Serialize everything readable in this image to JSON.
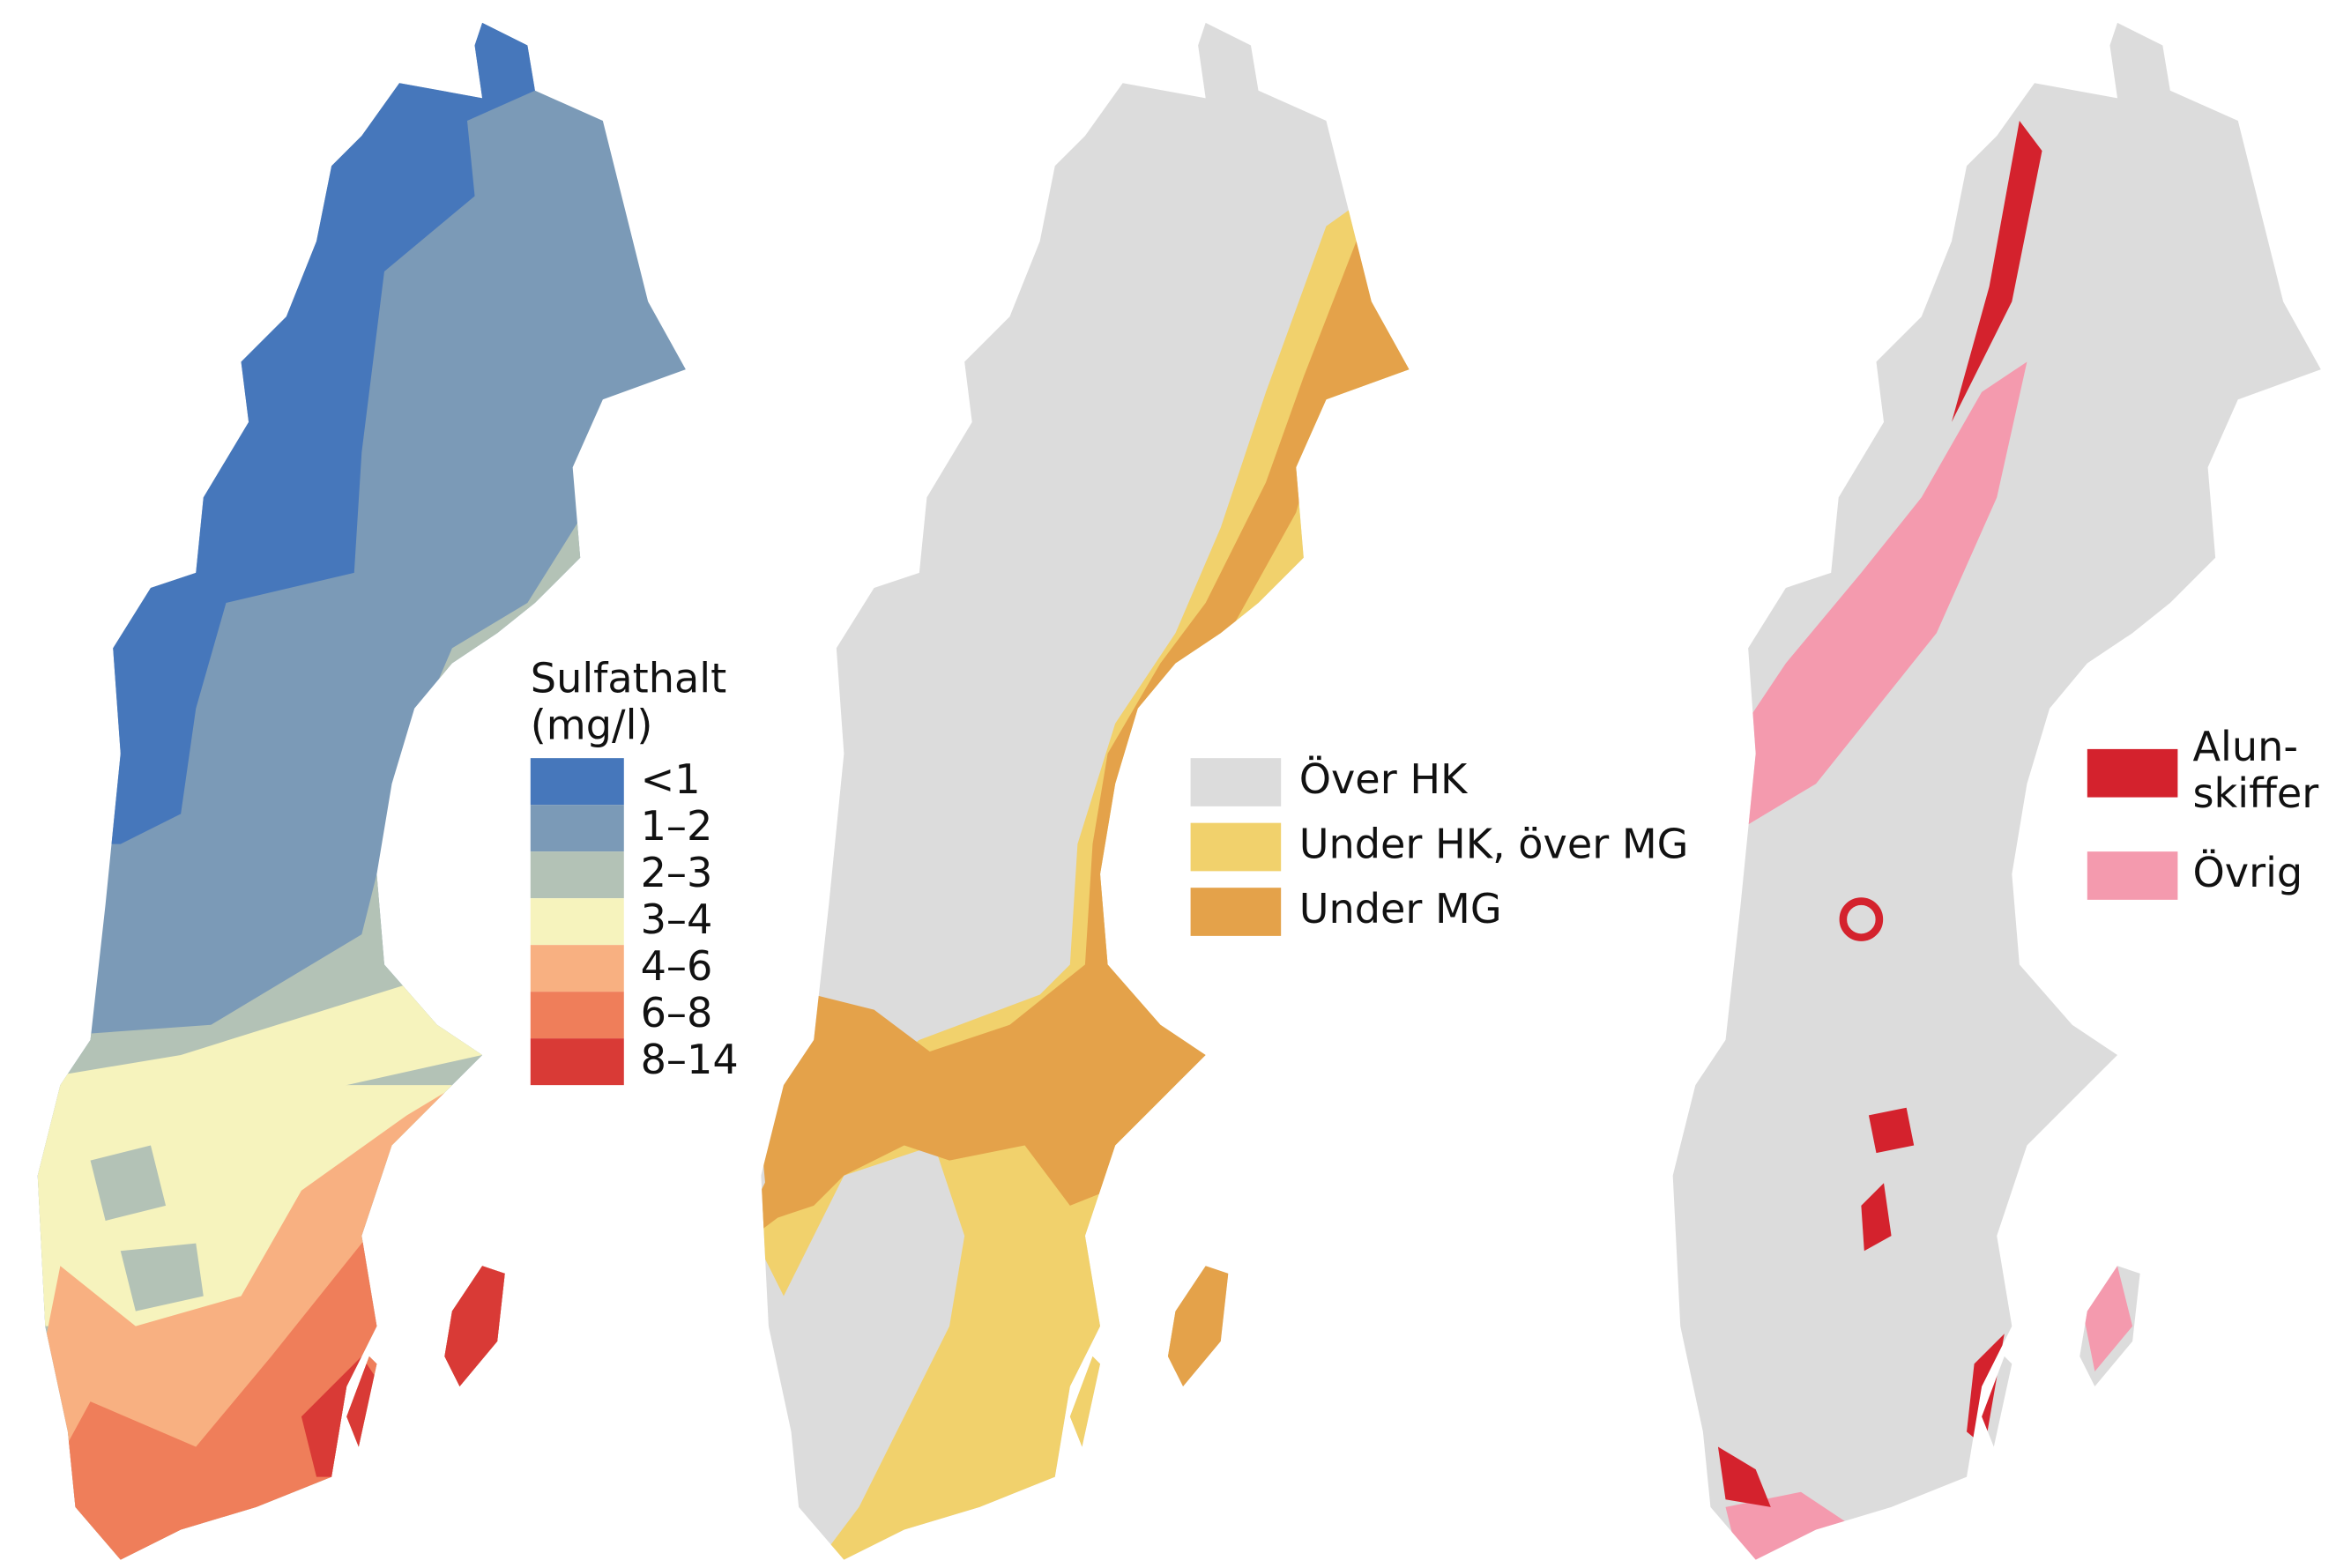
{
  "maps": [
    {
      "legend": {
        "title": [
          "Sulfathalt",
          "(mg/l)"
        ],
        "items": [
          {
            "label": "<1",
            "color": "#4677bb"
          },
          {
            "label": "1–2",
            "color": "#7b9ab7"
          },
          {
            "label": "2–3",
            "color": "#b3c2b6"
          },
          {
            "label": "3–4",
            "color": "#f6f3bd"
          },
          {
            "label": "4–6",
            "color": "#f8b081"
          },
          {
            "label": "6–8",
            "color": "#ef7e5a"
          },
          {
            "label": "8–14",
            "color": "#d93a36"
          }
        ]
      }
    },
    {
      "legend": {
        "items": [
          {
            "label": "Över HK",
            "color": "#dcdcdc"
          },
          {
            "label": "Under HK, över MG",
            "color": "#f1d16c"
          },
          {
            "label": "Under MG",
            "color": "#e4a24a"
          }
        ]
      }
    },
    {
      "legend": {
        "items": [
          {
            "label": [
              "Alun-",
              "skiffer"
            ],
            "color": "#d4222d"
          },
          {
            "label": [
              "Övrig"
            ],
            "color": "#f49aae"
          }
        ]
      }
    }
  ]
}
